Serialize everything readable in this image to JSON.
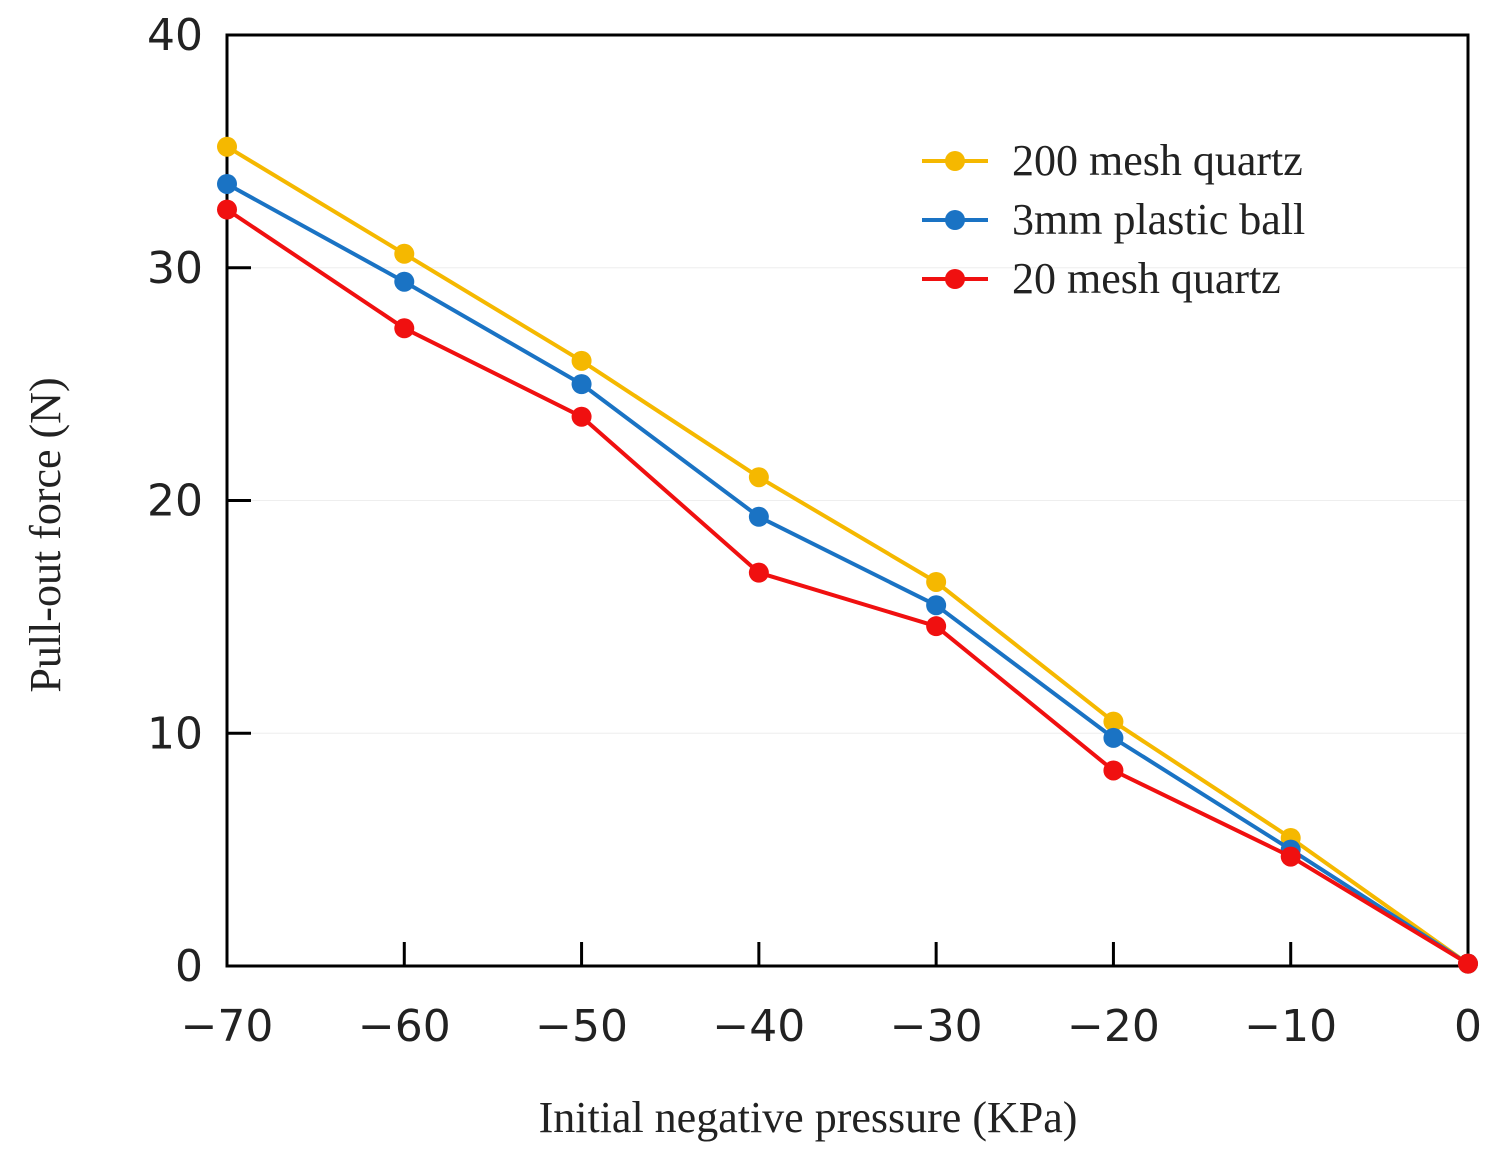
{
  "chart_data": {
    "type": "line",
    "title": "",
    "xlabel": "Initial negative pressure (KPa)",
    "ylabel": "Pull-out force (N)",
    "xlim": [
      -70,
      0
    ],
    "ylim": [
      0,
      40
    ],
    "x": [
      -70,
      -60,
      -50,
      -40,
      -30,
      -20,
      -10,
      0
    ],
    "xticks": [
      -70,
      -60,
      -50,
      -40,
      -30,
      -20,
      -10,
      0
    ],
    "xtick_labels": [
      "−70",
      "−60",
      "−50",
      "−40",
      "−30",
      "−20",
      "−10",
      "0"
    ],
    "yticks": [
      0,
      10,
      20,
      30,
      40
    ],
    "ytick_labels": [
      "0",
      "10",
      "20",
      "30",
      "40"
    ],
    "grid": "horizontal, light",
    "legend_position": "top-right",
    "series": [
      {
        "name": "200 mesh quartz",
        "color": "#F5B800",
        "values": [
          35.2,
          30.6,
          26.0,
          21.0,
          16.5,
          10.5,
          5.5,
          0.1
        ]
      },
      {
        "name": "3mm plastic ball",
        "color": "#1A73C4",
        "values": [
          33.6,
          29.4,
          25.0,
          19.3,
          15.5,
          9.8,
          5.0,
          0.1
        ]
      },
      {
        "name": "20 mesh quartz",
        "color": "#F01010",
        "values": [
          32.5,
          27.4,
          23.6,
          16.9,
          14.6,
          8.4,
          4.7,
          0.1
        ]
      }
    ]
  }
}
